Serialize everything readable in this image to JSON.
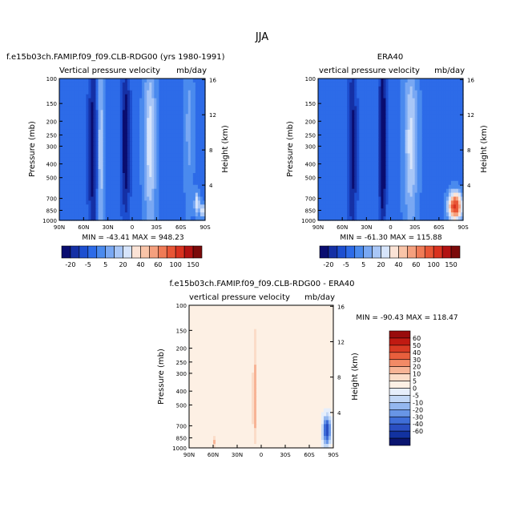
{
  "page_title": "JJA",
  "chart_data": [
    {
      "type": "heatmap",
      "title_left": "f.e15b03ch.FAMIP.f09_f09.CLB-RDG00 (yrs 1980-1991)",
      "variable_label": "Vertical pressure velocity",
      "units": "mb/day",
      "ylabel": "Pressure (mb)",
      "ylabel_right": "Height (km)",
      "x_ticks": [
        "90N",
        "60N",
        "30N",
        "0",
        "30S",
        "60S",
        "90S"
      ],
      "y_ticks": [
        "100",
        "150",
        "200",
        "250",
        "300",
        "400",
        "500",
        "700",
        "850",
        "1000"
      ],
      "y_ticks_right": [
        "16",
        "12",
        "8",
        "4"
      ],
      "stats": "MIN = -43.41   MAX = 948.23",
      "colorbar_labels": [
        "-20",
        "-5",
        "5",
        "20",
        "40",
        "60",
        "100",
        "150"
      ],
      "fields": [
        {
          "lat": 49,
          "p": 0.5,
          "val": -30,
          "wlat": 5,
          "wp": 0.7
        },
        {
          "lat": 39,
          "p": 0.5,
          "val": 15,
          "wlat": 4,
          "wp": 0.7
        },
        {
          "lat": 8,
          "p": 0.45,
          "val": -38,
          "wlat": 5,
          "wp": 0.5
        },
        {
          "lat": -22,
          "p": 0.45,
          "val": 20,
          "wlat": 7,
          "wp": 0.55
        },
        {
          "lat": -70,
          "p": 0.35,
          "val": 8,
          "wlat": 5,
          "wp": 0.5
        },
        {
          "lat": -80,
          "p": 0.88,
          "val": 25,
          "wlat": 3,
          "wp": 0.07
        },
        {
          "lat": -87,
          "p": 0.93,
          "val": 60,
          "wlat": 1.5,
          "wp": 0.04
        }
      ],
      "colorbar_colors": [
        "#0a0d70",
        "#1530a5",
        "#1d4fd0",
        "#2d6be8",
        "#4a8aee",
        "#79a8f3",
        "#a9c7f7",
        "#d6e4fb",
        "#fbe3d6",
        "#f9c4a8",
        "#f5a07e",
        "#f07b56",
        "#e85535",
        "#d9321f",
        "#b21212",
        "#7b0a0a"
      ]
    },
    {
      "type": "heatmap",
      "title_right": "ERA40",
      "variable_label": "vertical pressure velocity",
      "units": "mb/day",
      "ylabel": "Pressure (mb)",
      "ylabel_right": "Height (km)",
      "x_ticks": [
        "90N",
        "60N",
        "30N",
        "0",
        "30S",
        "60S",
        "90S"
      ],
      "y_ticks": [
        "100",
        "150",
        "200",
        "250",
        "300",
        "400",
        "500",
        "700",
        "850",
        "1000"
      ],
      "y_ticks_right": [
        "16",
        "12",
        "8",
        "4"
      ],
      "stats": "MIN = -61.30   MAX = 115.88",
      "colorbar_labels": [
        "-20",
        "-5",
        "5",
        "20",
        "40",
        "60",
        "100",
        "150"
      ],
      "fields": [
        {
          "lat": 47,
          "p": 0.5,
          "val": -28,
          "wlat": 5,
          "wp": 0.7
        },
        {
          "lat": 10,
          "p": 0.45,
          "val": -50,
          "wlat": 4,
          "wp": 0.55
        },
        {
          "lat": -25,
          "p": 0.45,
          "val": 18,
          "wlat": 8,
          "wp": 0.55
        },
        {
          "lat": -80,
          "p": 0.9,
          "val": 90,
          "wlat": 7,
          "wp": 0.08
        }
      ]
    },
    {
      "type": "heatmap",
      "title": "f.e15b03ch.FAMIP.f09_f09.CLB-RDG00 - ERA40",
      "variable_label": "vertical pressure velocity",
      "units": "mb/day",
      "ylabel": "Pressure (mb)",
      "ylabel_right": "Height (km)",
      "x_ticks": [
        "90N",
        "60N",
        "30N",
        "0",
        "30S",
        "60S",
        "90S"
      ],
      "y_ticks": [
        "100",
        "150",
        "200",
        "250",
        "300",
        "400",
        "500",
        "700",
        "850",
        "1000"
      ],
      "y_ticks_right": [
        "16",
        "12",
        "8",
        "4"
      ],
      "stats": "MIN = -90.43   MAX = 118.47",
      "colorbar_labels": [
        "60",
        "50",
        "40",
        "30",
        "20",
        "10",
        "5",
        "0",
        "-5",
        "-10",
        "-20",
        "-30",
        "-40",
        "-60"
      ],
      "fields": [
        {
          "lat": 70,
          "p": 0.4,
          "val": 3,
          "wlat": 10,
          "wp": 1.0
        },
        {
          "lat": 45,
          "p": 0.5,
          "val": 4,
          "wlat": 4,
          "wp": 0.8
        },
        {
          "lat": 8,
          "p": 0.7,
          "val": 14,
          "wlat": 2.5,
          "wp": 0.25
        },
        {
          "lat": 8,
          "p": 0.35,
          "val": 6,
          "wlat": 2.5,
          "wp": 0.3
        },
        {
          "lat": -15,
          "p": 0.5,
          "val": 3,
          "wlat": 3,
          "wp": 0.8
        },
        {
          "lat": -50,
          "p": 0.4,
          "val": 4,
          "wlat": 4,
          "wp": 0.6
        },
        {
          "lat": -82,
          "p": 0.88,
          "val": -60,
          "wlat": 4,
          "wp": 0.08
        },
        {
          "lat": 58,
          "p": 0.96,
          "val": 15,
          "wlat": 2,
          "wp": 0.03
        }
      ],
      "colorbar_colors": [
        "#990c0c",
        "#c01a12",
        "#d83a23",
        "#e85f3d",
        "#f28a66",
        "#f7b496",
        "#fbdcc8",
        "#fdf0e4",
        "#e6eefb",
        "#c2d7f6",
        "#94b7ef",
        "#6895e6",
        "#3f6ed8",
        "#2a4fc2",
        "#1232a0",
        "#0a1570"
      ]
    }
  ]
}
